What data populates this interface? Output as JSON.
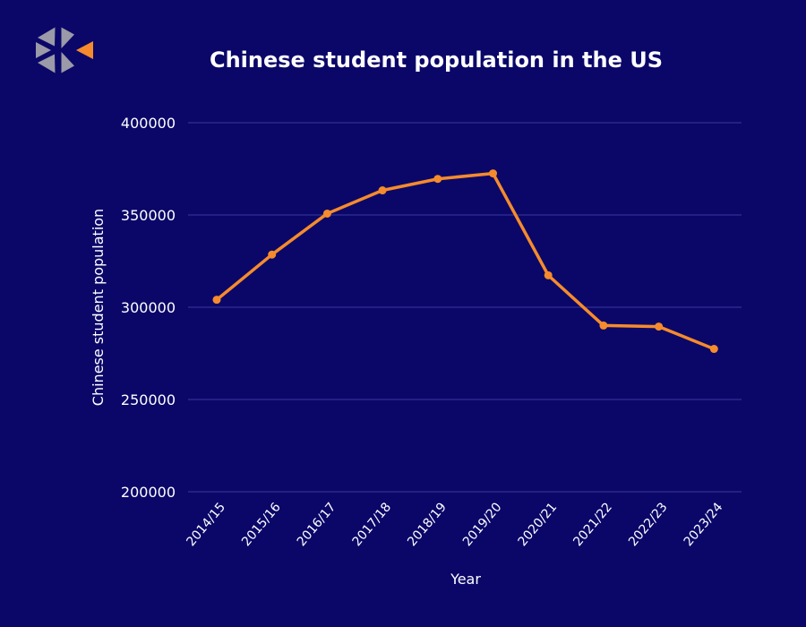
{
  "chart_data": {
    "type": "line",
    "title": "Chinese student population in the US",
    "xlabel": "Year",
    "ylabel": "Chinese student population",
    "categories": [
      "2014/15",
      "2015/16",
      "2016/17",
      "2017/18",
      "2018/19",
      "2019/20",
      "2020/21",
      "2021/22",
      "2022/23",
      "2023/24"
    ],
    "series": [
      {
        "values": [
          304040,
          328547,
          350755,
          363341,
          369548,
          372532,
          317299,
          290086,
          289526,
          277398
        ]
      }
    ],
    "ylim": [
      200000,
      400000
    ],
    "yticks": [
      "200000",
      "250000",
      "300000",
      "350000",
      "400000"
    ],
    "grid": true,
    "legend": "none"
  },
  "colors": {
    "background": "#0b0769",
    "line": "#f58b2c",
    "gridline": "#3a3a9e",
    "text": "#ffffff",
    "logo_gray": "#9a9aa8",
    "logo_orange": "#f58b2c"
  },
  "logo": {
    "icon": "logo-icon"
  }
}
